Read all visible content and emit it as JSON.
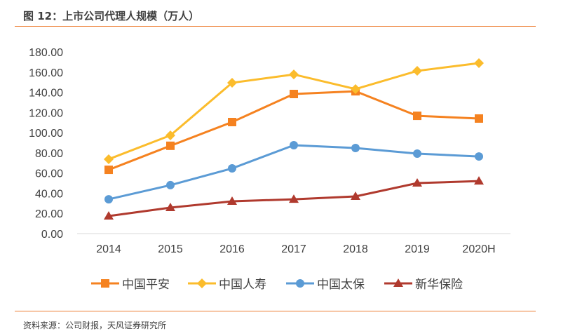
{
  "title": "图 12：上市公司代理人规模（万人）",
  "source": "资料来源：公司财报，天风证券研究所",
  "colors": {
    "rule": "#ed7d31"
  },
  "chart_data": {
    "type": "line",
    "title": "",
    "xlabel": "",
    "ylabel": "",
    "categories": [
      "2014",
      "2015",
      "2016",
      "2017",
      "2018",
      "2019",
      "2020H"
    ],
    "ylim": [
      0,
      180
    ],
    "yticks": [
      "0.00",
      "20.00",
      "40.00",
      "60.00",
      "80.00",
      "100.00",
      "120.00",
      "140.00",
      "160.00",
      "180.00"
    ],
    "grid": false,
    "legend": "bottom",
    "series": [
      {
        "name": "中国平安",
        "color": "#f58220",
        "marker": "square",
        "values": [
          63.2,
          87.0,
          110.5,
          138.3,
          141.0,
          116.7,
          114.0
        ]
      },
      {
        "name": "中国人寿",
        "color": "#fbbc2c",
        "marker": "diamond",
        "values": [
          73.7,
          97.3,
          149.4,
          157.7,
          143.2,
          161.2,
          168.9
        ]
      },
      {
        "name": "中国太保",
        "color": "#5b9bd5",
        "marker": "circle",
        "values": [
          34.0,
          48.0,
          64.6,
          87.6,
          84.8,
          79.2,
          76.4
        ]
      },
      {
        "name": "新华保险",
        "color": "#b03a2e",
        "marker": "triangle",
        "values": [
          17.4,
          25.7,
          32.0,
          34.0,
          36.8,
          50.0,
          52.0
        ]
      }
    ]
  }
}
